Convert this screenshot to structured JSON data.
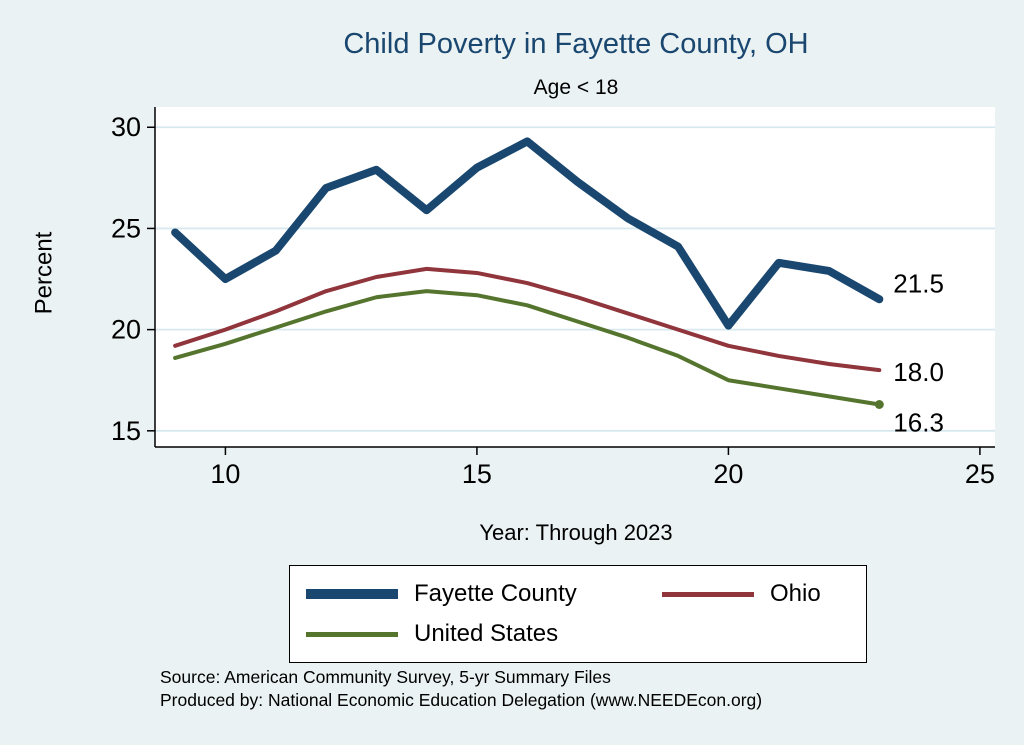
{
  "title": "Child Poverty in Fayette County, OH",
  "subtitle": "Age < 18",
  "chart_data": {
    "type": "line",
    "title": "Child Poverty in Fayette County, OH",
    "subtitle": "Age < 18",
    "xlabel": "Year: Through 2023",
    "ylabel": "Percent",
    "xlim": [
      8.6,
      25.3
    ],
    "ylim": [
      14.2,
      31.0
    ],
    "x_ticks": [
      10,
      15,
      20,
      25
    ],
    "y_ticks": [
      15,
      20,
      25,
      30
    ],
    "grid": true,
    "legend_position": "bottom",
    "x": [
      9,
      10,
      11,
      12,
      13,
      14,
      15,
      16,
      17,
      18,
      19,
      20,
      21,
      22,
      23
    ],
    "series": [
      {
        "name": "Fayette County",
        "color": "#1A476F",
        "width": 8,
        "values": [
          24.8,
          22.5,
          23.9,
          27.0,
          27.9,
          25.9,
          28.0,
          29.3,
          27.3,
          25.5,
          24.1,
          20.2,
          23.3,
          22.9,
          21.5
        ],
        "end_label": "21.5",
        "label_offset": -16,
        "end_marker": false
      },
      {
        "name": "Ohio",
        "color": "#90353B",
        "width": 4,
        "values": [
          19.2,
          20.0,
          20.9,
          21.9,
          22.6,
          23.0,
          22.8,
          22.3,
          21.6,
          20.8,
          20.0,
          19.2,
          18.7,
          18.3,
          18.0
        ],
        "end_label": "18.0",
        "label_offset": 2,
        "end_marker": false
      },
      {
        "name": "United States",
        "color": "#55752F",
        "width": 4,
        "values": [
          18.6,
          19.3,
          20.1,
          20.9,
          21.6,
          21.9,
          21.7,
          21.2,
          20.4,
          19.6,
          18.7,
          17.5,
          17.1,
          16.7,
          16.3
        ],
        "end_label": "16.3",
        "label_offset": 18,
        "end_marker": true
      }
    ]
  },
  "footer": {
    "line1": "Source: American Community Survey, 5-yr Summary Files",
    "line2": "Produced by: National Economic Education Delegation (www.NEEDEcon.org)"
  },
  "colors": {
    "background": "#EAF2F3",
    "plot_background": "#FFFFFF",
    "grid": "#D7E8EF",
    "axis": "#000000",
    "title": "#1A476F"
  }
}
